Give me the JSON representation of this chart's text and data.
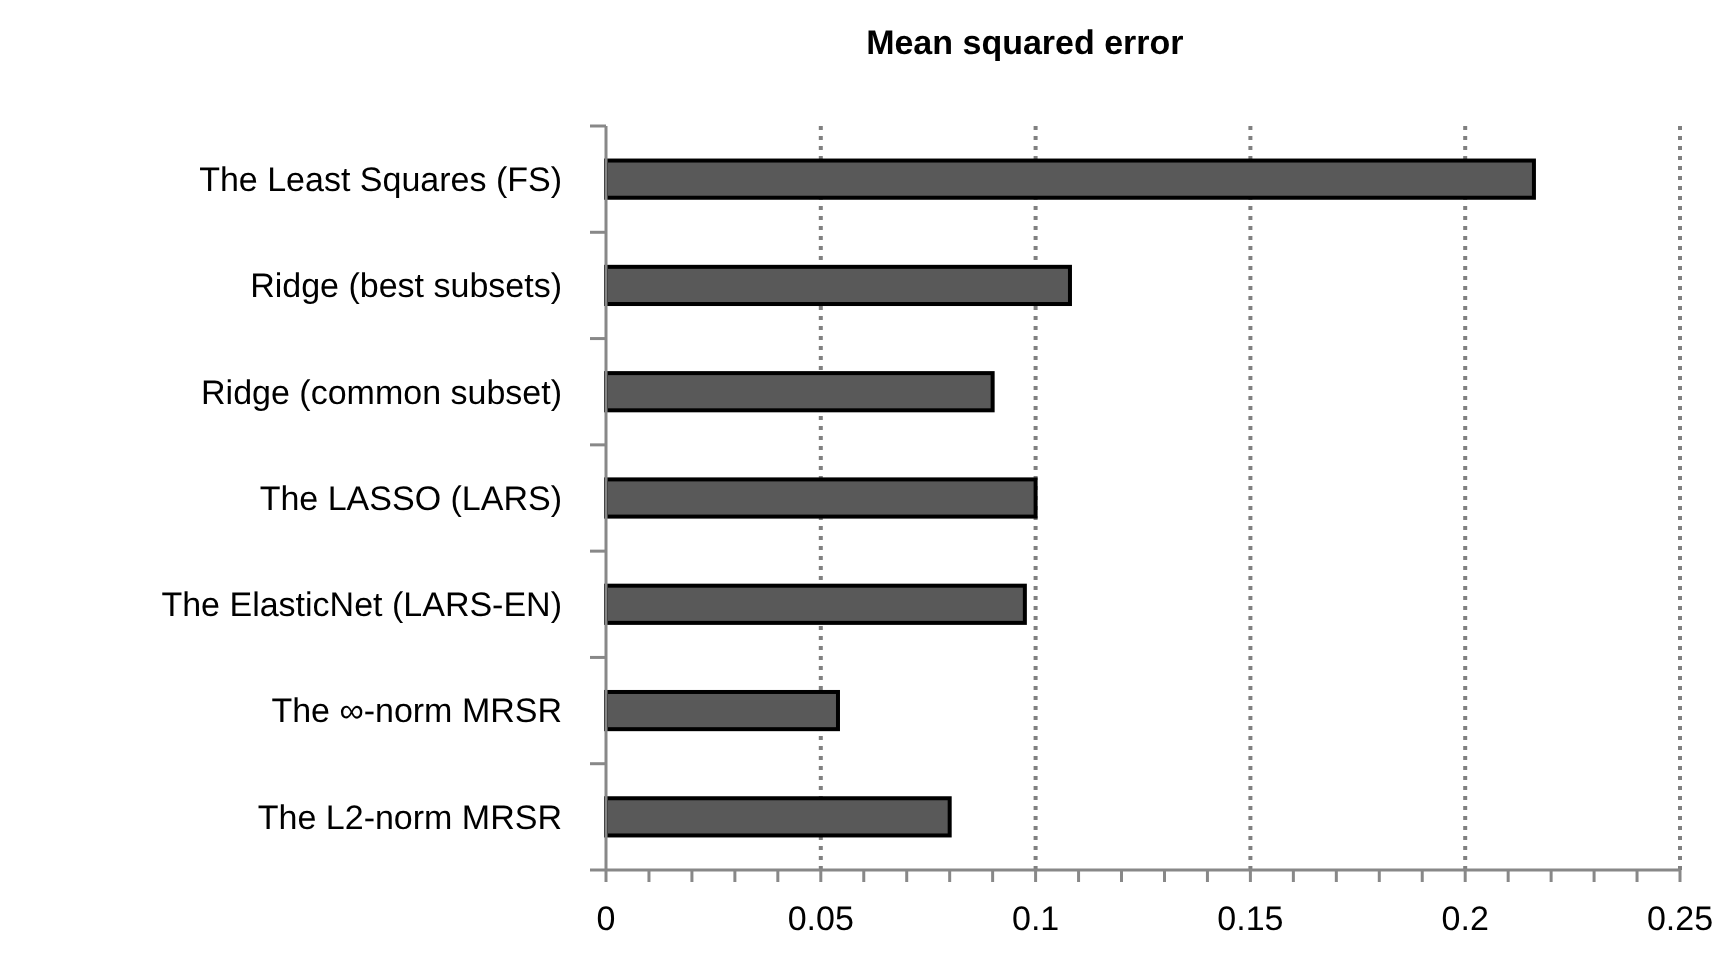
{
  "chart_data": {
    "type": "bar",
    "orientation": "horizontal",
    "title": "Mean squared error",
    "categories": [
      "The Least Squares (FS)",
      "Ridge (best subsets)",
      "Ridge (common subset)",
      "The LASSO (LARS)",
      "The ElasticNet (LARS-EN)",
      "The ∞-norm MRSR",
      "The L2-norm MRSR"
    ],
    "values": [
      0.216,
      0.108,
      0.09,
      0.1,
      0.0975,
      0.054,
      0.08
    ],
    "color": "#595959",
    "xlim": [
      0,
      0.25
    ],
    "xticks": [
      0,
      {
        "value": 0.01,
        "label": null
      },
      {
        "value": 0.02,
        "label": null
      },
      {
        "value": 0.03,
        "label": null
      },
      {
        "value": 0.04,
        "label": null
      },
      0.05,
      {
        "value": 0.06,
        "label": null
      },
      {
        "value": 0.07,
        "label": null
      },
      {
        "value": 0.08,
        "label": null
      },
      {
        "value": 0.09,
        "label": null
      },
      0.1,
      {
        "value": 0.11,
        "label": null
      },
      {
        "value": 0.12,
        "label": null
      },
      {
        "value": 0.13,
        "label": null
      },
      {
        "value": 0.14,
        "label": null
      },
      0.15,
      {
        "value": 0.16,
        "label": null
      },
      {
        "value": 0.17,
        "label": null
      },
      {
        "value": 0.18,
        "label": null
      },
      {
        "value": 0.19,
        "label": null
      },
      0.2,
      {
        "value": 0.21,
        "label": null
      },
      {
        "value": 0.22,
        "label": null
      },
      {
        "value": 0.23,
        "label": null
      },
      {
        "value": 0.24,
        "label": null
      },
      0.25
    ],
    "grid": "x"
  }
}
